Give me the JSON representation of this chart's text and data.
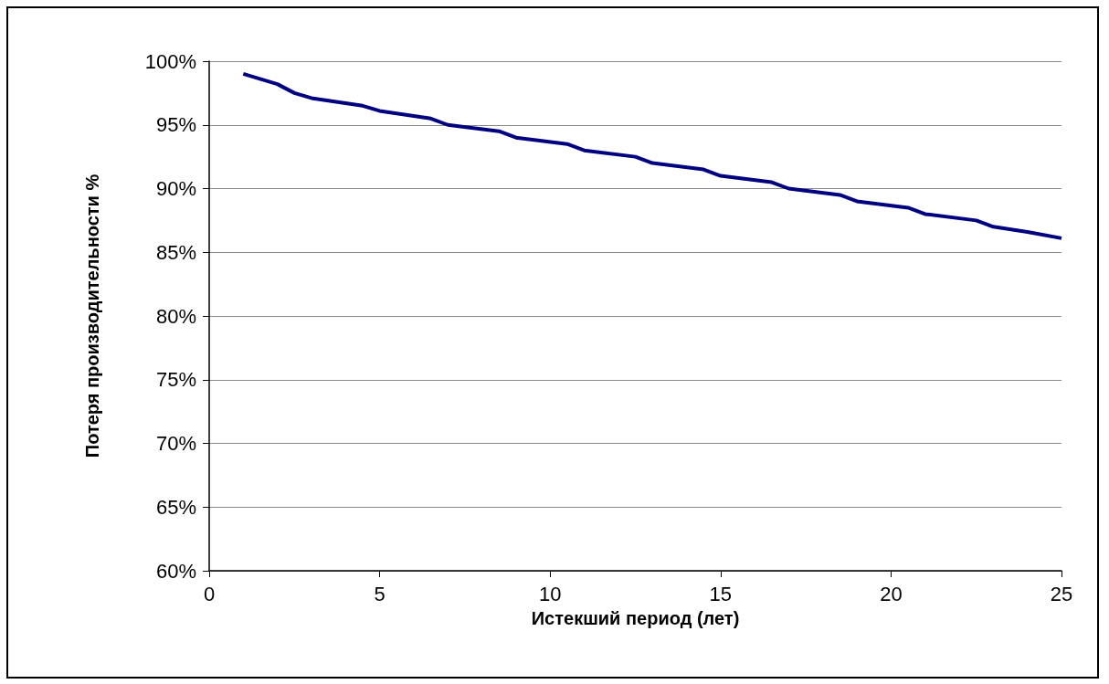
{
  "chart_data": {
    "type": "line",
    "xlabel": "Истекший период (лет)",
    "ylabel": "Потеря производительности %",
    "x": [
      1,
      2,
      2.5,
      3,
      4.5,
      5,
      6.5,
      7,
      8.5,
      9,
      10.5,
      11,
      12.5,
      13,
      14.5,
      15,
      16.5,
      17,
      18.5,
      19,
      20.5,
      21,
      22.5,
      23,
      24,
      25
    ],
    "series": [
      {
        "color": "#000080",
        "values": [
          99,
          98.2,
          97.5,
          97.1,
          96.5,
          96.1,
          95.5,
          95,
          94.5,
          94,
          93.5,
          93,
          92.5,
          92,
          91.5,
          91,
          90.5,
          90,
          89.5,
          89,
          88.5,
          88,
          87.5,
          87,
          86.6,
          86.1
        ]
      }
    ],
    "xlim": [
      0,
      25
    ],
    "xticks": [
      0,
      5,
      10,
      15,
      20,
      25
    ],
    "ylim": [
      60,
      100
    ],
    "yticks": [
      {
        "value": 60,
        "label": "60%"
      },
      {
        "value": 65,
        "label": "65%"
      },
      {
        "value": 70,
        "label": "70%"
      },
      {
        "value": 75,
        "label": "75%"
      },
      {
        "value": 80,
        "label": "80%"
      },
      {
        "value": 85,
        "label": "85%"
      },
      {
        "value": 90,
        "label": "90%"
      },
      {
        "value": 95,
        "label": "95%"
      },
      {
        "value": 100,
        "label": "100%"
      }
    ],
    "grid": "y",
    "marker": "none",
    "line_style": "solid"
  }
}
